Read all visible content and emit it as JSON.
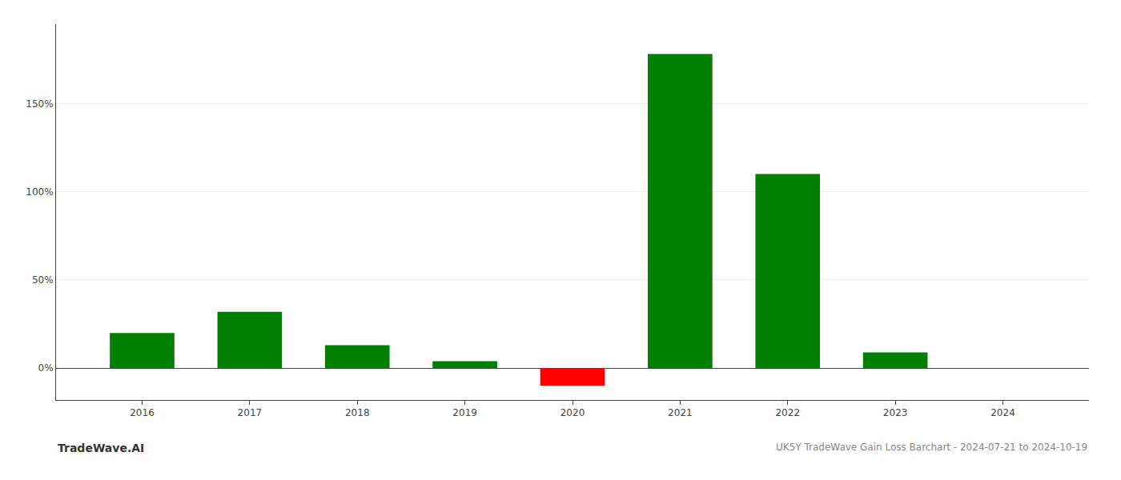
{
  "chart_data": {
    "type": "bar",
    "title": "UK5Y TradeWave Gain Loss Barchart - 2024-07-21 to 2024-10-19",
    "annotations": [
      {
        "text": "TradeWave.AI"
      }
    ],
    "x": [
      2016,
      2017,
      2018,
      2019,
      2020,
      2021,
      2022,
      2023,
      2024
    ],
    "values": [
      20.0,
      32.0,
      13.0,
      4.0,
      -10.0,
      178.0,
      110.0,
      9.0,
      0.0
    ],
    "colors": [
      "#008000",
      "#008000",
      "#008000",
      "#008000",
      "#ff0000",
      "#008000",
      "#008000",
      "#008000",
      "#008000"
    ],
    "xlim": [
      2015.2,
      2024.8
    ],
    "xticks": [
      2016,
      2017,
      2018,
      2019,
      2020,
      2021,
      2022,
      2023,
      2024
    ],
    "ylim": [
      -18,
      195
    ],
    "yticks": [
      {
        "value": 0,
        "label": "0%"
      },
      {
        "value": 50,
        "label": "50%"
      },
      {
        "value": 100,
        "label": "100%"
      },
      {
        "value": 150,
        "label": "150%"
      }
    ],
    "grid": true
  }
}
